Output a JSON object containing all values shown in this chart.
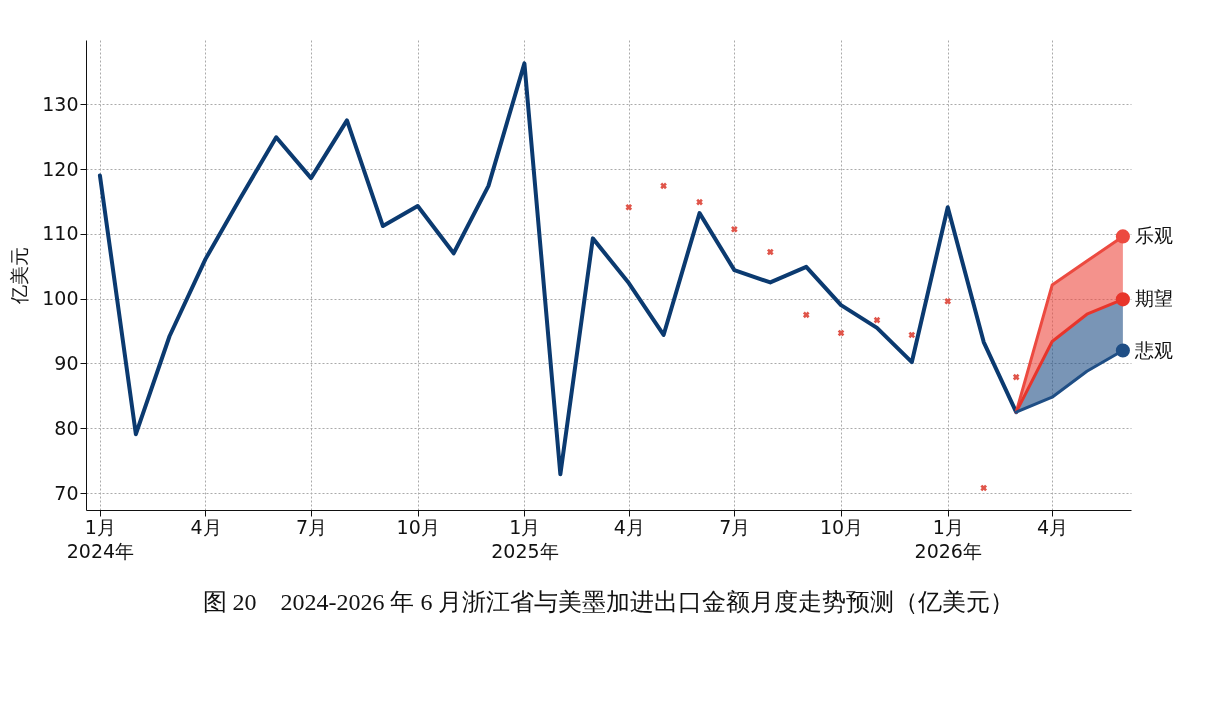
{
  "chart_data": {
    "type": "line",
    "title": "图 20　2024-2026 年 6 月浙江省与美墨加进出口金额月度走势预测（亿美元）",
    "ylabel": "亿美元",
    "xlim": [
      "2023-12-20",
      "2026-06-08"
    ],
    "xticks": [
      {
        "value": "2024-01",
        "label": "1月\n2024年"
      },
      {
        "value": "2024-04",
        "label": "4月"
      },
      {
        "value": "2024-07",
        "label": "7月"
      },
      {
        "value": "2024-10",
        "label": "10月"
      },
      {
        "value": "2025-01",
        "label": "1月\n2025年"
      },
      {
        "value": "2025-04",
        "label": "4月"
      },
      {
        "value": "2025-07",
        "label": "7月"
      },
      {
        "value": "2025-10",
        "label": "10月"
      },
      {
        "value": "2026-01",
        "label": "1月\n2026年"
      },
      {
        "value": "2026-04",
        "label": "4月"
      }
    ],
    "ylim": [
      67.4,
      139.9
    ],
    "yticks": [
      70,
      80,
      90,
      100,
      110,
      120,
      130
    ],
    "grid": true,
    "series": [
      {
        "type": "line",
        "color": "#0b3a70",
        "x": [
          "2024-01",
          "2024-02",
          "2024-03",
          "2024-04",
          "2024-05",
          "2024-06",
          "2024-07",
          "2024-08",
          "2024-09",
          "2024-10",
          "2024-11",
          "2024-12",
          "2025-01",
          "2025-02",
          "2025-03",
          "2025-04",
          "2025-05",
          "2025-06",
          "2025-07",
          "2025-08",
          "2025-09",
          "2025-10",
          "2025-11",
          "2025-12",
          "2026-01",
          "2026-02",
          "2026-03"
        ],
        "values": [
          119.0,
          79.1,
          94.2,
          106.1,
          115.5,
          124.9,
          118.6,
          127.5,
          111.2,
          114.3,
          107.0,
          117.4,
          136.3,
          72.9,
          109.3,
          102.4,
          94.4,
          113.2,
          104.4,
          102.5,
          104.9,
          99.0,
          95.5,
          90.2,
          114.1,
          93.3,
          82.5
        ]
      },
      {
        "type": "scatter",
        "marker": "cross",
        "color": "#e0554a",
        "x": [
          "2025-04",
          "2025-05",
          "2025-06",
          "2025-07",
          "2025-08",
          "2025-09",
          "2025-10",
          "2025-11",
          "2025-12",
          "2026-01",
          "2026-02",
          "2026-03"
        ],
        "values": [
          114.1,
          117.4,
          114.9,
          110.7,
          107.2,
          97.5,
          94.7,
          96.7,
          94.4,
          99.6,
          70.8,
          87.9
        ]
      },
      {
        "type": "line",
        "name": "乐观",
        "color": "#ec4a40",
        "x": [
          "2026-03",
          "2026-04",
          "2026-05",
          "2026-06"
        ],
        "values": [
          82.5,
          102.1,
          105.8,
          109.6
        ],
        "lower": [
          82.5,
          93.4,
          97.6,
          99.9
        ],
        "upper": [
          82.5,
          102.1,
          105.8,
          109.6
        ]
      },
      {
        "type": "line",
        "name": "期望",
        "color": "#e8352b",
        "x": [
          "2026-03",
          "2026-04",
          "2026-05",
          "2026-06"
        ],
        "values": [
          82.5,
          93.4,
          97.6,
          99.9
        ]
      },
      {
        "type": "line",
        "name": "悲观",
        "color": "#1f4e85",
        "x": [
          "2026-03",
          "2026-04",
          "2026-05",
          "2026-06"
        ],
        "values": [
          82.5,
          84.8,
          88.8,
          92.0
        ],
        "lower": [
          82.5,
          84.8,
          88.8,
          92.0
        ],
        "upper": [
          82.5,
          93.4,
          97.6,
          99.9
        ]
      }
    ]
  }
}
